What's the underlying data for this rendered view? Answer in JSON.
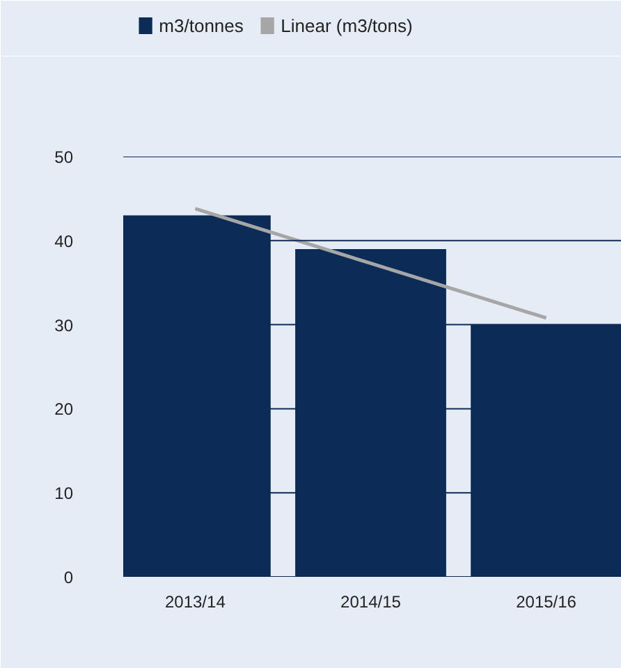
{
  "chart_data": {
    "type": "bar",
    "categories": [
      "2013/14",
      "2014/15",
      "2015/16"
    ],
    "series": [
      {
        "name": "m3/tonnes",
        "color": "#0c2b57",
        "values": [
          43,
          39,
          30
        ]
      },
      {
        "name": "Linear (m3/tons)",
        "type": "line",
        "color": "#a6a6a6",
        "values": [
          43.8,
          37.3,
          30.8
        ]
      }
    ],
    "ylim": [
      0,
      50
    ],
    "yticks": [
      0,
      10,
      20,
      30,
      40,
      50
    ],
    "grid": "y",
    "legend": "top left"
  }
}
